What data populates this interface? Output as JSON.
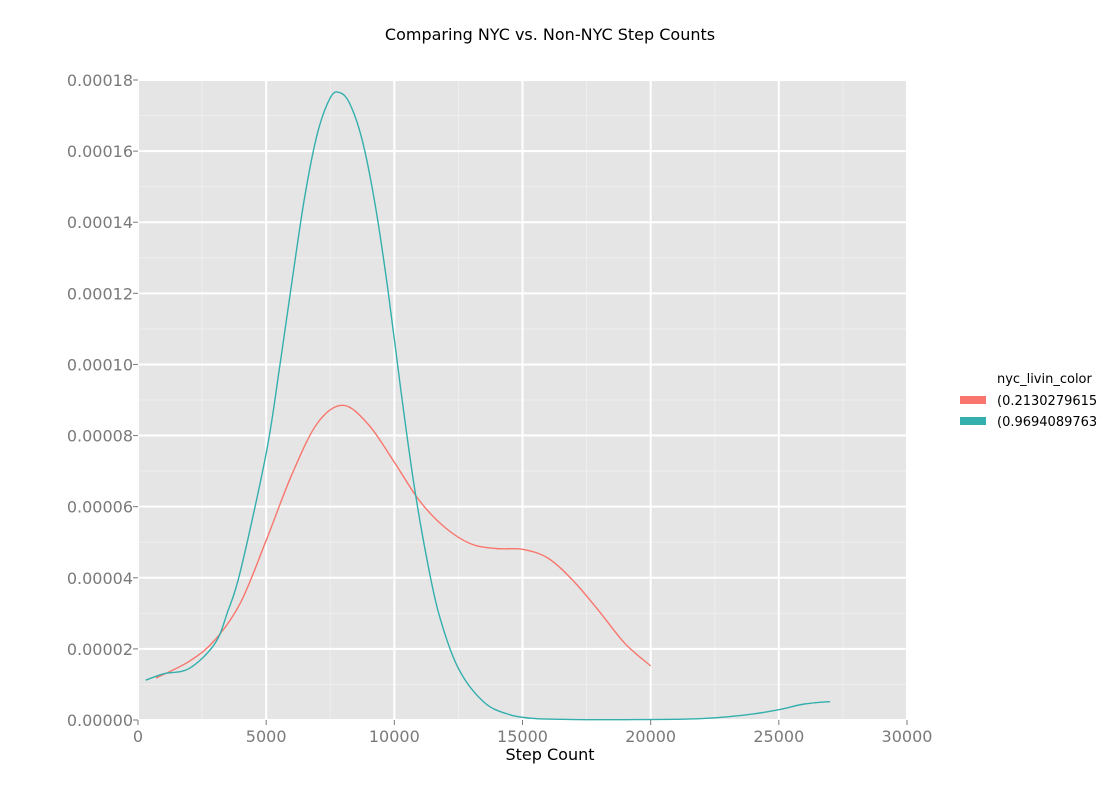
{
  "chart_data": {
    "type": "line",
    "title": "Comparing NYC vs. Non-NYC Step Counts",
    "xlabel": "Step Count",
    "ylabel": "",
    "xlim": [
      0,
      30000
    ],
    "ylim": [
      0,
      0.00018
    ],
    "x_ticks": [
      0,
      5000,
      10000,
      15000,
      20000,
      25000,
      30000
    ],
    "x_tick_labels": [
      "0",
      "5000",
      "10000",
      "15000",
      "20000",
      "25000",
      "30000"
    ],
    "y_ticks": [
      0,
      2e-05,
      4e-05,
      6e-05,
      8e-05,
      0.0001,
      0.00012,
      0.00014,
      0.00016,
      0.00018
    ],
    "y_tick_labels": [
      "0.00000",
      "0.00002",
      "0.00004",
      "0.00006",
      "0.00008",
      "0.00010",
      "0.00012",
      "0.00014",
      "0.00016",
      "0.00018"
    ],
    "grid": true,
    "legend": {
      "title": "nyc_livin_color",
      "placement": "right"
    },
    "series": [
      {
        "name": "(0.2130279615",
        "color": "#F8766D",
        "x": [
          700,
          2000,
          3000,
          4000,
          5000,
          6000,
          7000,
          8000,
          9000,
          10000,
          11000,
          12000,
          13000,
          14000,
          15000,
          16000,
          17000,
          18000,
          19000,
          20000
        ],
        "y": [
          1.18e-05,
          1.65e-05,
          2.25e-05,
          3.3e-05,
          5.05e-05,
          6.9e-05,
          8.35e-05,
          8.85e-05,
          8.3e-05,
          7.25e-05,
          6.15e-05,
          5.4e-05,
          4.95e-05,
          4.82e-05,
          4.8e-05,
          4.55e-05,
          3.9e-05,
          3.05e-05,
          2.15e-05,
          1.52e-05
        ]
      },
      {
        "name": "(0.9694089763",
        "color": "#33AFAD",
        "x": [
          300,
          1000,
          2000,
          3000,
          3500,
          4000,
          5000,
          5500,
          6000,
          6500,
          7000,
          7500,
          7850,
          8250,
          8750,
          9250,
          9750,
          10250,
          10750,
          11250,
          11750,
          12500,
          13500,
          14500,
          15500,
          16500,
          17500,
          19000,
          21000,
          22000,
          23000,
          24000,
          25000,
          26000,
          27000
        ],
        "y": [
          1.12e-05,
          1.3e-05,
          1.45e-05,
          2.15e-05,
          3.05e-05,
          4.2e-05,
          7.5e-05,
          9.8e-05,
          0.000123,
          0.000147,
          0.000165,
          0.000175,
          0.0001765,
          0.0001735,
          0.000163,
          0.000145,
          0.000121,
          9.3e-05,
          6.7e-05,
          4.6e-05,
          2.95e-05,
          1.45e-05,
          5e-06,
          1.5e-06,
          4e-07,
          2e-07,
          1e-07,
          1e-07,
          2e-07,
          4e-07,
          9e-07,
          1.7e-06,
          2.9e-06,
          4.5e-06,
          5.2e-06
        ]
      }
    ]
  }
}
